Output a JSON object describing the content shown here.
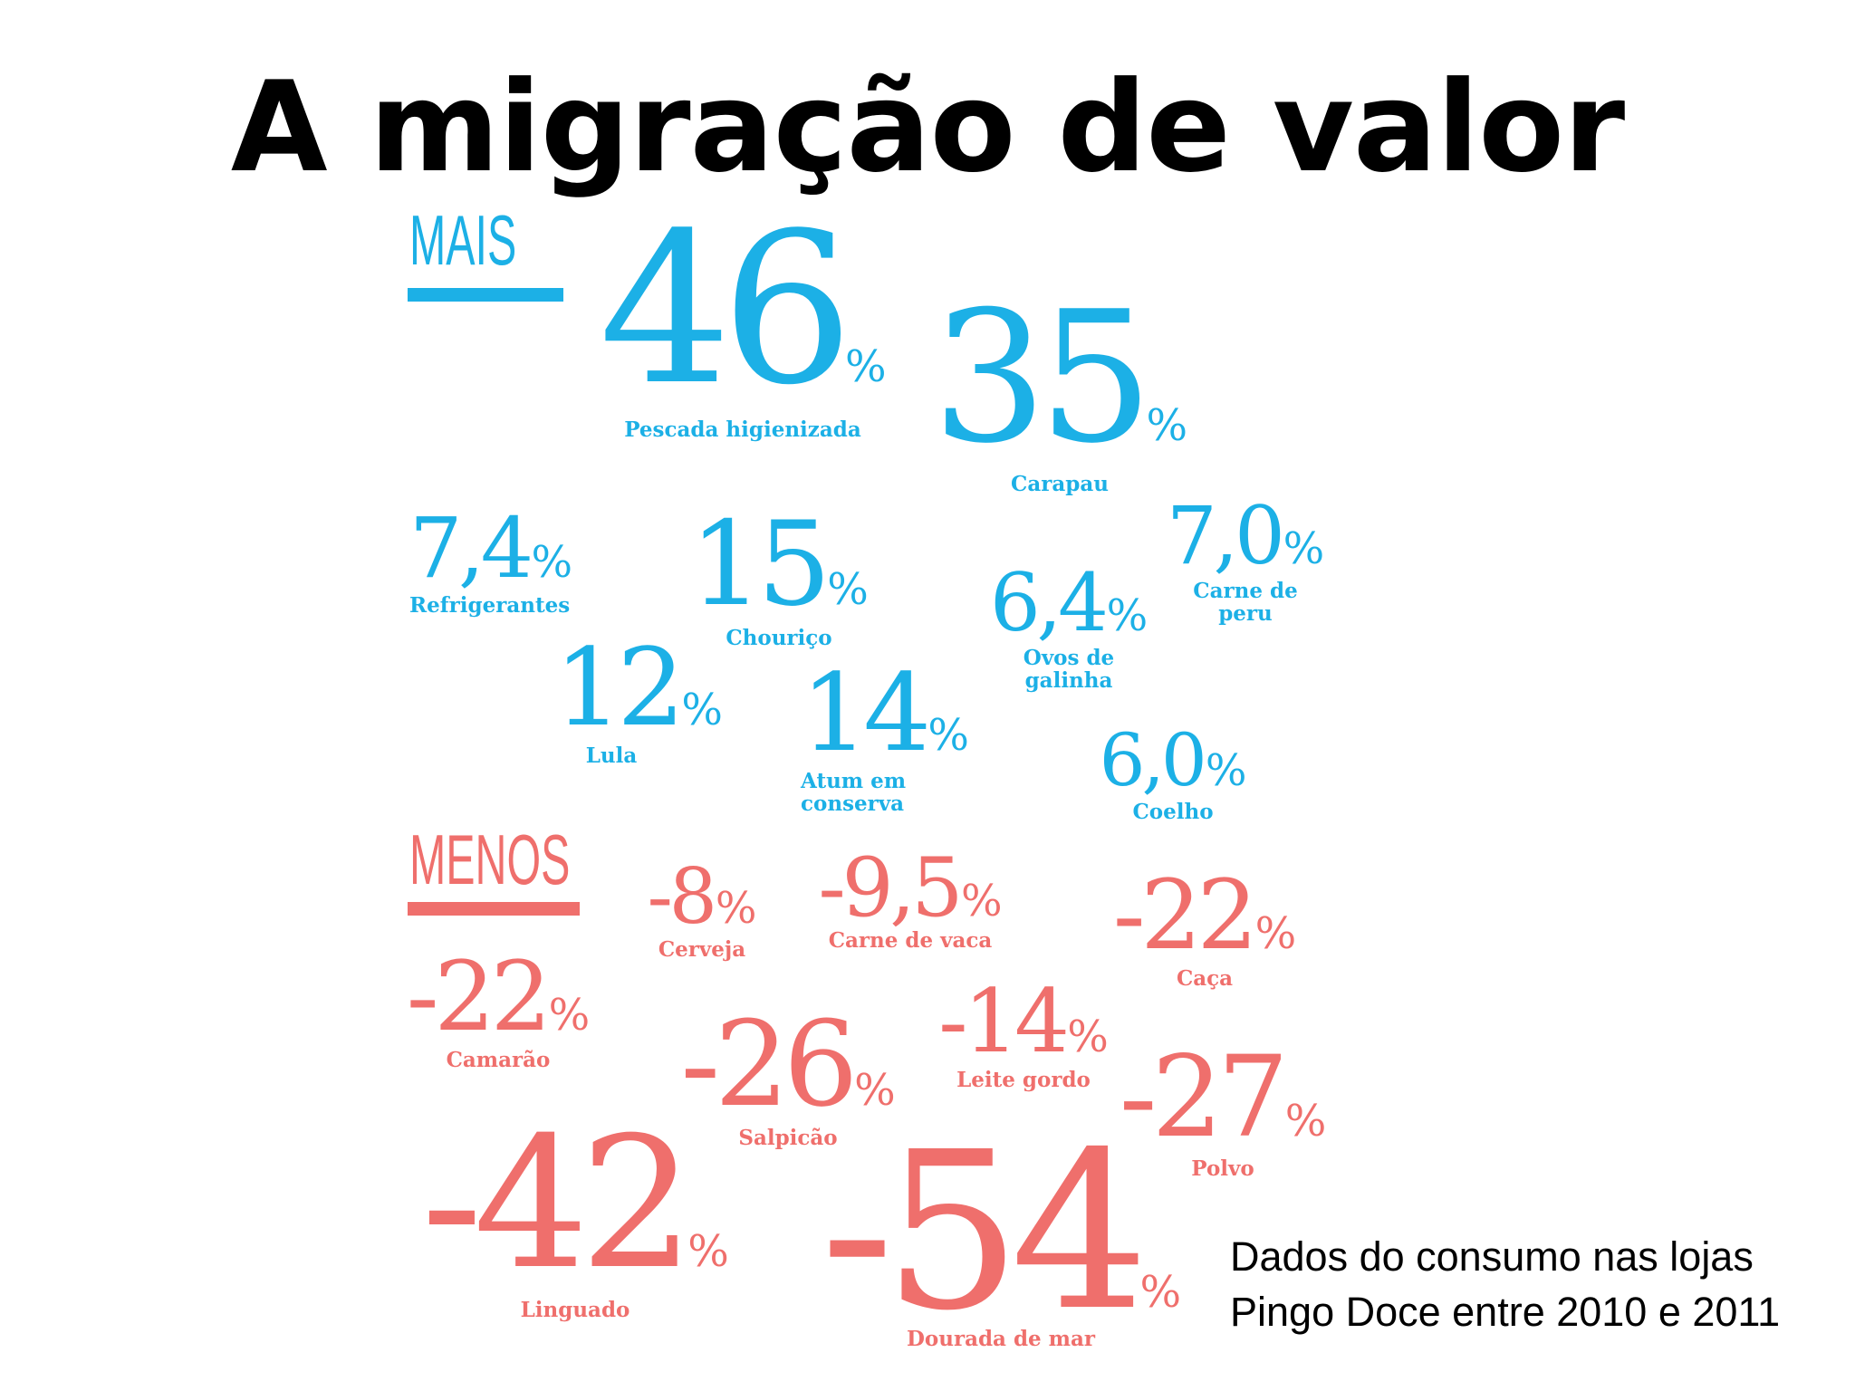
{
  "title": "A migração de valor",
  "colors": {
    "mais": "#1cb0e6",
    "menos": "#ef6f6c"
  },
  "sections": {
    "mais_label": "MAIS",
    "menos_label": "MENOS"
  },
  "mais": [
    {
      "value": "46",
      "pct": "%",
      "label": "Pescada higienizada"
    },
    {
      "value": "35",
      "pct": "%",
      "label": "Carapau"
    },
    {
      "value": "7,4",
      "pct": "%",
      "label": "Refrigerantes"
    },
    {
      "value": "15",
      "pct": "%",
      "label": "Chouriço"
    },
    {
      "value": "6,4",
      "pct": "%",
      "label": "Ovos de\ngalinha"
    },
    {
      "value": "7,0",
      "pct": "%",
      "label": "Carne de\nperu"
    },
    {
      "value": "12",
      "pct": "%",
      "label": "Lula"
    },
    {
      "value": "14",
      "pct": "%",
      "label": "Atum em\nconserva"
    },
    {
      "value": "6,0",
      "pct": "%",
      "label": "Coelho"
    }
  ],
  "menos": [
    {
      "value": "-8",
      "pct": "%",
      "label": "Cerveja"
    },
    {
      "value": "-9,5",
      "pct": "%",
      "label": "Carne de vaca"
    },
    {
      "value": "-22",
      "pct": "%",
      "label": "Caça"
    },
    {
      "value": "-22",
      "pct": "%",
      "label": "Camarão"
    },
    {
      "value": "-14",
      "pct": "%",
      "label": "Leite gordo"
    },
    {
      "value": "-26",
      "pct": "%",
      "label": "Salpicão"
    },
    {
      "value": "-27",
      "pct": "%",
      "label": "Polvo"
    },
    {
      "value": "-42",
      "pct": "%",
      "label": "Linguado"
    },
    {
      "value": "-54",
      "pct": "%",
      "label": "Dourada de mar"
    }
  ],
  "note": {
    "line1": "Dados do consumo nas lojas",
    "line2": "Pingo Doce entre 2010 e 2011"
  }
}
